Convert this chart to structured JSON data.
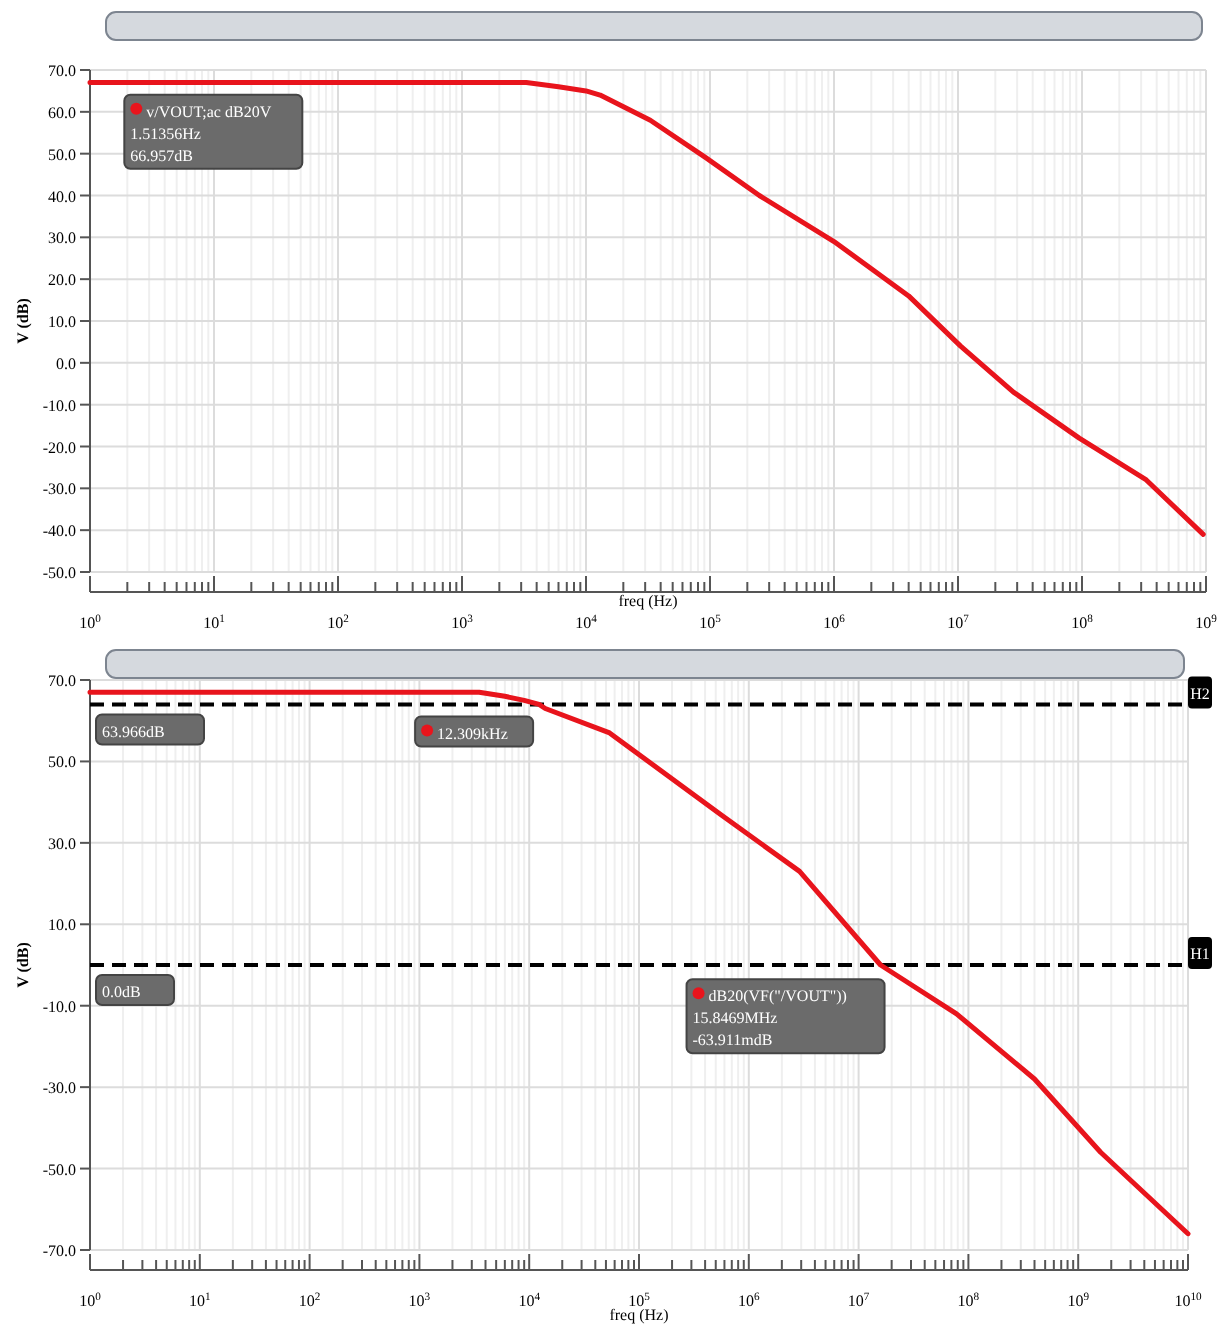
{
  "chart_data": [
    {
      "type": "line",
      "xlabel": "freq (Hz)",
      "ylabel": "V (dB)",
      "log": "x",
      "grid": true,
      "marker": "none",
      "line_style": "solid",
      "xlim": [
        1,
        1000000000
      ],
      "xticks": [
        {
          "value": 1,
          "label": "10$^{0}$"
        },
        {
          "value": 10,
          "label": "10$^{1}$"
        },
        {
          "value": 100,
          "label": "10$^{2}$"
        },
        {
          "value": 1000,
          "label": "10$^{3}$"
        },
        {
          "value": 10000,
          "label": "10$^{4}$"
        },
        {
          "value": 100000,
          "label": "10$^{5}$"
        },
        {
          "value": 1000000,
          "label": "10$^{6}$"
        },
        {
          "value": 10000000,
          "label": "10$^{7}$"
        },
        {
          "value": 100000000,
          "label": "10$^{8}$"
        },
        {
          "value": 1000000000,
          "label": "10$^{9}$"
        }
      ],
      "ylim": [
        -50,
        70
      ],
      "yticks": [
        {
          "value": 70,
          "label": "70.0"
        },
        {
          "value": 60,
          "label": "60.0"
        },
        {
          "value": 50,
          "label": "50.0"
        },
        {
          "value": 40,
          "label": "40.0"
        },
        {
          "value": 30,
          "label": "30.0"
        },
        {
          "value": 20,
          "label": "20.0"
        },
        {
          "value": 10,
          "label": "10.0"
        },
        {
          "value": 0,
          "label": "0.0"
        },
        {
          "value": -10,
          "label": "-10.0"
        },
        {
          "value": -20,
          "label": "-20.0"
        },
        {
          "value": -30,
          "label": "-30.0"
        },
        {
          "value": -40,
          "label": "-40.0"
        },
        {
          "value": -50,
          "label": "-50.0"
        }
      ],
      "series": [
        {
          "color": "#e8141c",
          "x": [
            1,
            10,
            100,
            1000,
            3300,
            6000,
            10000,
            13000,
            33000,
            93000,
            250000,
            1000000,
            4000000,
            10500000,
            28000000,
            95000000,
            330000000,
            950000000
          ],
          "values": [
            67,
            67,
            67,
            67,
            67,
            66,
            65,
            64,
            58,
            49,
            40,
            29,
            16,
            4,
            -7,
            -18,
            -28,
            -41
          ]
        }
      ],
      "annotations": [
        {
          "text": "v/VOUT;ac dB20V\n1.51356Hz\n66.957dB",
          "x": 1.51356,
          "y": 66.957
        }
      ]
    },
    {
      "type": "line",
      "xlabel": "freq (Hz)",
      "ylabel": "V (dB)",
      "log": "x",
      "grid": true,
      "marker": "none",
      "line_style": "solid",
      "xlim": [
        1,
        10000000000
      ],
      "xticks": [
        {
          "value": 1,
          "label": "10$^{0}$"
        },
        {
          "value": 10,
          "label": "10$^{1}$"
        },
        {
          "value": 100,
          "label": "10$^{2}$"
        },
        {
          "value": 1000,
          "label": "10$^{3}$"
        },
        {
          "value": 10000,
          "label": "10$^{4}$"
        },
        {
          "value": 100000,
          "label": "10$^{5}$"
        },
        {
          "value": 1000000,
          "label": "10$^{6}$"
        },
        {
          "value": 10000000,
          "label": "10$^{7}$"
        },
        {
          "value": 100000000,
          "label": "10$^{8}$"
        },
        {
          "value": 1000000000,
          "label": "10$^{9}$"
        },
        {
          "value": 10000000000,
          "label": "10$^{10}$"
        }
      ],
      "ylim": [
        -70,
        70
      ],
      "yticks": [
        {
          "value": 70,
          "label": "70.0"
        },
        {
          "value": 50,
          "label": "50.0"
        },
        {
          "value": 30,
          "label": "30.0"
        },
        {
          "value": 10,
          "label": "10.0"
        },
        {
          "value": -10,
          "label": "-10.0"
        },
        {
          "value": -30,
          "label": "-30.0"
        },
        {
          "value": -50,
          "label": "-50.0"
        },
        {
          "value": -70,
          "label": "-70.0"
        }
      ],
      "series": [
        {
          "color": "#e8141c",
          "x": [
            1,
            10,
            100,
            1000,
            3500,
            6000,
            9000,
            12309,
            14000,
            54000,
            550000,
            2900000,
            15846900,
            78000000,
            400000000,
            1600000000,
            10000000000
          ],
          "values": [
            67,
            67,
            67,
            67,
            67,
            66,
            65,
            64,
            63,
            57,
            37,
            23,
            0,
            -12,
            -28,
            -46,
            -66
          ]
        }
      ],
      "ref_lines": [
        {
          "axis": "y",
          "value": 63.966,
          "label": "H2",
          "color": "#000000",
          "line_style": "dashed"
        },
        {
          "axis": "y",
          "value": 0,
          "label": "H1",
          "color": "#000000",
          "line_style": "dashed"
        }
      ],
      "annotations": [
        {
          "text": "63.966dB",
          "y": 63.966
        },
        {
          "text": "0.0dB",
          "y": 0
        },
        {
          "text": "12.309kHz",
          "x": 12309,
          "y": 63.966
        },
        {
          "text": "dB20(VF(\"/VOUT\"))\n15.8469MHz\n-63.911mdB",
          "x": 15846900,
          "y": -0.063911
        }
      ]
    }
  ]
}
